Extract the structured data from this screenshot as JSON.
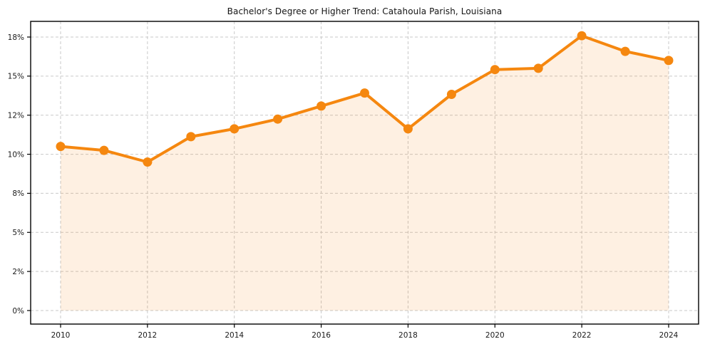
{
  "chart_data": {
    "type": "line",
    "title": "Bachelor's Degree or Higher Trend: Catahoula Parish, Louisiana",
    "series_name": "Bachelor's Degree or Higher",
    "unit": "%",
    "x": [
      2010,
      2011,
      2012,
      2013,
      2014,
      2015,
      2016,
      2017,
      2018,
      2019,
      2020,
      2021,
      2022,
      2023,
      2024
    ],
    "values": [
      10.4,
      10.2,
      9.6,
      10.9,
      11.3,
      11.8,
      12.7,
      13.7,
      11.3,
      13.6,
      15.5,
      15.6,
      18.1,
      16.9,
      16.2
    ],
    "x_tick_labels": [
      "2010",
      "2012",
      "2014",
      "2016",
      "2018",
      "2020",
      "2022",
      "2024"
    ],
    "y_ticks": {
      "values": [
        0,
        2,
        5,
        8,
        10,
        12,
        15,
        18
      ],
      "labels": [
        "0%",
        "2%",
        "5%",
        "8%",
        "10%",
        "12%",
        "15%",
        "18%"
      ]
    },
    "layout_hints": {
      "y_tick_spacing": "uniform-pixel",
      "grid": "dashed",
      "legend_position": "none",
      "area_fill_under_line": true
    },
    "colors": {
      "line": "#f5870f",
      "marker": "#f5870f",
      "fill": "rgba(245, 135, 15, 0.12)",
      "grid": "#c9c9c9",
      "axis": "#000000",
      "text": "#1a1a1a",
      "title_text": "#141414",
      "background": "#ffffff"
    }
  }
}
